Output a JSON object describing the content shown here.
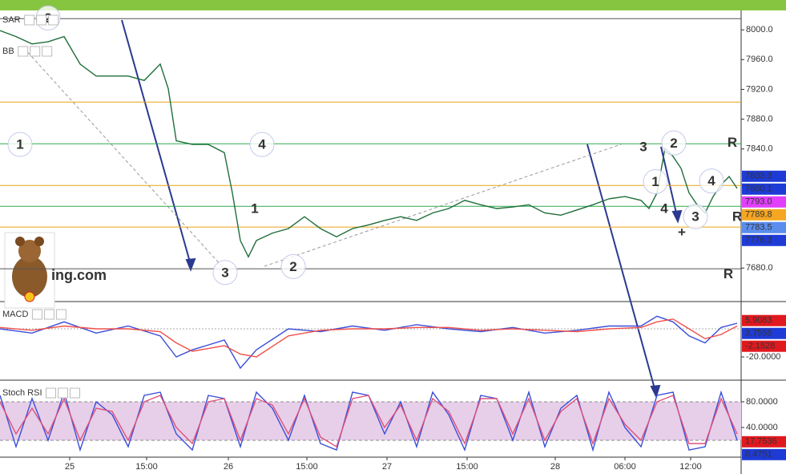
{
  "chart_data": [
    {
      "type": "line",
      "pane": "price",
      "x": [
        0,
        20,
        40,
        60,
        80,
        100,
        120,
        140,
        160,
        180,
        200,
        210,
        220,
        240,
        260,
        280,
        290,
        300,
        310,
        320,
        340,
        360,
        380,
        400,
        420,
        440,
        460,
        480,
        500,
        520,
        540,
        560,
        580,
        600,
        620,
        640,
        660,
        680,
        700,
        720,
        740,
        760,
        780,
        800,
        810,
        820,
        830,
        840,
        850,
        860,
        870,
        880,
        890,
        900,
        910,
        920
      ],
      "series": [
        {
          "color": "#1f6e3a",
          "values": [
            7999,
            7991,
            7981,
            7984,
            7991,
            7954,
            7938,
            7938,
            7938,
            7932,
            7954,
            7921,
            7851,
            7846,
            7846,
            7835,
            7781,
            7717,
            7695,
            7717,
            7727,
            7733,
            7749,
            7733,
            7722,
            7733,
            7738,
            7744,
            7749,
            7744,
            7754,
            7760,
            7771,
            7765,
            7760,
            7762,
            7765,
            7754,
            7751,
            7758,
            7765,
            7773,
            7776,
            7771,
            7760,
            7781,
            7841,
            7830,
            7814,
            7781,
            7765,
            7754,
            7776,
            7792,
            7803,
            7787
          ]
        }
      ],
      "xlim": [
        0,
        925
      ],
      "ylim": [
        7635,
        8025
      ],
      "yticks": [
        {
          "value": 8000,
          "label": "8000.0"
        },
        {
          "value": 7960,
          "label": "7960.0"
        },
        {
          "value": 7920,
          "label": "7920.0"
        },
        {
          "value": 7880,
          "label": "7880.0"
        },
        {
          "value": 7840,
          "label": "7840.0"
        },
        {
          "value": 7680,
          "label": "7680.0"
        }
      ],
      "indicators": [
        "SAR",
        "BB"
      ],
      "watermark": "ing.com",
      "levels": [
        {
          "value": 8015,
          "color": "#555555"
        },
        {
          "value": 7903,
          "color": "#e8a317"
        },
        {
          "value": 7847,
          "color": "#2fa84f"
        },
        {
          "value": 7791,
          "color": "#e8a317"
        },
        {
          "value": 7763,
          "color": "#2fa84f"
        },
        {
          "value": 7735,
          "color": "#e8a317"
        },
        {
          "value": 7679,
          "color": "#555555"
        }
      ],
      "price_labels": [
        {
          "value": 7803.3,
          "label": "7803.3",
          "color": "#1e3bd6"
        },
        {
          "value": 7800.1,
          "label": "7800.1",
          "color": "#1e3bd6"
        },
        {
          "value": 7793.0,
          "label": "7793.0",
          "color": "#e040fb"
        },
        {
          "value": 7789.8,
          "label": "7789.8",
          "color": "#f5a623"
        },
        {
          "value": 7783.5,
          "label": "7783.5",
          "color": "#5b8def"
        },
        {
          "value": 7776.3,
          "label": "7776.3",
          "color": "#1e3bd6"
        }
      ],
      "annotations": [
        {
          "text": "2",
          "x": 60,
          "y": 8016,
          "color": "#2a3a8c",
          "circled": true
        },
        {
          "text": "1",
          "x": 25,
          "y": 7846,
          "color": "#2a3a8c",
          "circled": true
        },
        {
          "text": "4",
          "x": 327,
          "y": 7846,
          "color": "#2a3a8c",
          "circled": true
        },
        {
          "text": "3",
          "x": 281,
          "y": 7674,
          "color": "#2a3a8c",
          "circled": true
        },
        {
          "text": "1",
          "x": 318,
          "y": 7760,
          "color": "#e0191f",
          "circled": false
        },
        {
          "text": "2",
          "x": 366,
          "y": 7682,
          "color": "#e0191f",
          "circled": true
        },
        {
          "text": "3",
          "x": 803,
          "y": 7843,
          "color": "#e0191f",
          "circled": false
        },
        {
          "text": "2",
          "x": 841,
          "y": 7848,
          "color": "#2a3a8c",
          "circled": true
        },
        {
          "text": "1",
          "x": 818,
          "y": 7796,
          "color": "#2a3a8c",
          "circled": true
        },
        {
          "text": "4",
          "x": 829,
          "y": 7760,
          "color": "#e0191f",
          "circled": false
        },
        {
          "text": "3",
          "x": 868,
          "y": 7749,
          "color": "#2a3a8c",
          "circled": true
        },
        {
          "text": "4",
          "x": 888,
          "y": 7797,
          "color": "#2a3a8c",
          "circled": true
        },
        {
          "text": "R",
          "x": 914,
          "y": 7849,
          "color": "#e0191f",
          "circled": false
        },
        {
          "text": "R",
          "x": 920,
          "y": 7749,
          "color": "#2a3a8c",
          "circled": false
        },
        {
          "text": "R",
          "x": 909,
          "y": 7672,
          "color": "#2a3a8c",
          "circled": false
        },
        {
          "text": "+",
          "x": 851,
          "y": 7728,
          "color": "#e0191f",
          "circled": false
        }
      ]
    },
    {
      "type": "line",
      "pane": "macd",
      "title": "MACD",
      "x": [
        0,
        40,
        80,
        120,
        160,
        200,
        220,
        240,
        280,
        300,
        320,
        360,
        400,
        440,
        480,
        520,
        560,
        600,
        640,
        680,
        720,
        760,
        800,
        820,
        840,
        860,
        880,
        900,
        920
      ],
      "series": [
        {
          "color": "#3b4fd8",
          "values": [
            0,
            -3,
            5,
            -3,
            2,
            -5,
            -20,
            -15,
            -8,
            -28,
            -15,
            0,
            -2,
            2,
            -1,
            3,
            0,
            -2,
            1,
            -3,
            -1,
            2,
            2,
            9,
            5,
            -5,
            -10,
            1,
            4
          ]
        },
        {
          "color": "#f0504a",
          "values": [
            1,
            -1,
            2,
            0,
            0,
            -2,
            -10,
            -16,
            -12,
            -18,
            -20,
            -5,
            -1,
            0,
            0,
            1,
            1,
            -1,
            0,
            -1,
            -2,
            0,
            1,
            5,
            7,
            0,
            -7,
            -4,
            2
          ]
        }
      ],
      "xlim": [
        0,
        925
      ],
      "ylim": [
        -36.6,
        18.9
      ],
      "yticks": [
        {
          "value": -20,
          "label": "-20.0000"
        }
      ],
      "price_labels": [
        {
          "value": 5.9083,
          "label": "5.9083",
          "color": "#e0191f"
        },
        {
          "value": 3.7555,
          "label": "3.7555",
          "color": "#1e3bd6"
        },
        {
          "value": -2.1528,
          "label": "-2.1528",
          "color": "#e0191f"
        }
      ]
    },
    {
      "type": "line",
      "pane": "stoch",
      "title": "Stoch RSI",
      "x": [
        0,
        20,
        40,
        60,
        80,
        100,
        120,
        140,
        160,
        180,
        200,
        220,
        240,
        260,
        280,
        300,
        320,
        340,
        360,
        380,
        400,
        420,
        440,
        460,
        480,
        500,
        520,
        540,
        560,
        580,
        600,
        620,
        640,
        660,
        680,
        700,
        720,
        740,
        760,
        780,
        800,
        820,
        840,
        860,
        880,
        900,
        920
      ],
      "series": [
        {
          "color": "#3b4fd8",
          "values": [
            90,
            10,
            85,
            20,
            95,
            5,
            80,
            60,
            10,
            90,
            95,
            30,
            5,
            90,
            85,
            10,
            95,
            70,
            20,
            90,
            15,
            5,
            95,
            90,
            30,
            80,
            10,
            95,
            60,
            5,
            90,
            85,
            20,
            95,
            10,
            70,
            90,
            5,
            95,
            40,
            10,
            90,
            95,
            5,
            10,
            95,
            20
          ]
        },
        {
          "color": "#e0507a",
          "values": [
            80,
            30,
            70,
            30,
            85,
            20,
            70,
            65,
            20,
            80,
            90,
            40,
            15,
            80,
            85,
            20,
            85,
            75,
            30,
            85,
            25,
            10,
            85,
            90,
            40,
            75,
            20,
            85,
            65,
            15,
            85,
            85,
            30,
            85,
            20,
            65,
            85,
            15,
            85,
            45,
            20,
            80,
            90,
            15,
            15,
            85,
            30
          ]
        }
      ],
      "band": [
        20,
        80
      ],
      "band_color": "#e7cfe9",
      "xlim": [
        0,
        925
      ],
      "ylim": [
        -6.25,
        112.5
      ],
      "yticks": [
        {
          "value": 80,
          "label": "80.0000"
        },
        {
          "value": 40,
          "label": "40.0000"
        }
      ],
      "xticks": [
        {
          "value": 87,
          "label": "25"
        },
        {
          "value": 183,
          "label": "15:00"
        },
        {
          "value": 285,
          "label": "26"
        },
        {
          "value": 383,
          "label": "15:00"
        },
        {
          "value": 483,
          "label": "27"
        },
        {
          "value": 583,
          "label": "15:00"
        },
        {
          "value": 693,
          "label": "28"
        },
        {
          "value": 780,
          "label": "06:00"
        },
        {
          "value": 862,
          "label": "12:00"
        }
      ],
      "price_labels": [
        {
          "value": 17.7536,
          "label": "17.7536",
          "color": "#e0191f"
        },
        {
          "value": 0.4751,
          "label": "0.4751",
          "color": "#1e3bd6"
        }
      ]
    }
  ]
}
